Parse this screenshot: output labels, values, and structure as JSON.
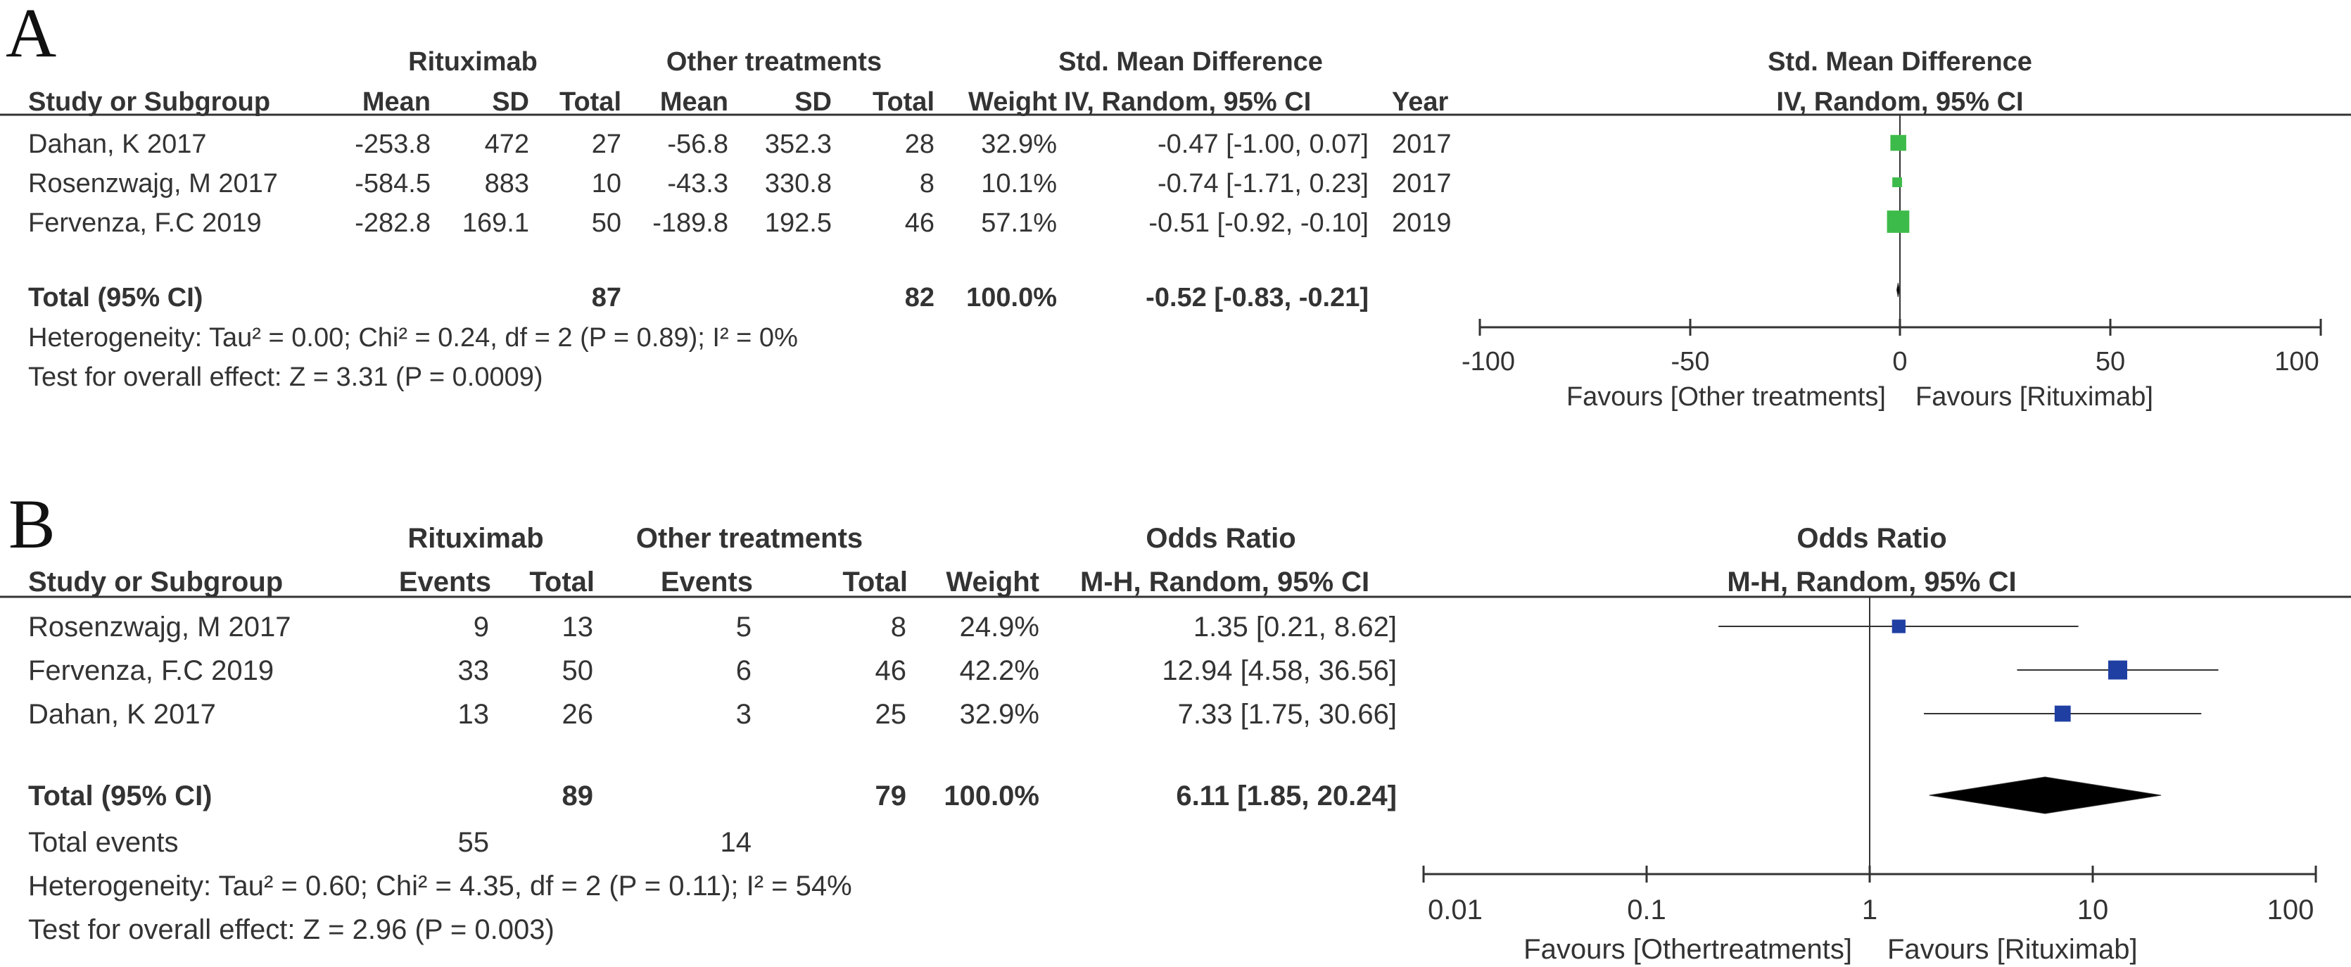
{
  "chart_data": [
    {
      "panel": "A",
      "type": "forest",
      "group_headers": [
        "Rituximab",
        "Other treatments"
      ],
      "columns": [
        "Study or Subgroup",
        "Mean",
        "SD",
        "Total",
        "Mean",
        "SD",
        "Total",
        "Weight",
        "IV, Random, 95% CI",
        "Year"
      ],
      "effect_header": "Std. Mean Difference",
      "plot_header": [
        "Std. Mean Difference",
        "IV, Random, 95% CI"
      ],
      "studies": [
        {
          "study": "Dahan, K 2017",
          "mean1": "-253.8",
          "sd1": "472",
          "n1": "27",
          "mean2": "-56.8",
          "sd2": "352.3",
          "n2": "28",
          "weight": "32.9%",
          "ci_text": "-0.47 [-1.00, 0.07]",
          "year": "2017",
          "est": -0.47,
          "lo": -1.0,
          "hi": 0.07,
          "w": 32.9
        },
        {
          "study": "Rosenzwajg, M 2017",
          "mean1": "-584.5",
          "sd1": "883",
          "n1": "10",
          "mean2": "-43.3",
          "sd2": "330.8",
          "n2": "8",
          "weight": "10.1%",
          "ci_text": "-0.74 [-1.71, 0.23]",
          "year": "2017",
          "est": -0.74,
          "lo": -1.71,
          "hi": 0.23,
          "w": 10.1
        },
        {
          "study": "Fervenza, F.C 2019",
          "mean1": "-282.8",
          "sd1": "169.1",
          "n1": "50",
          "mean2": "-189.8",
          "sd2": "192.5",
          "n2": "46",
          "weight": "57.1%",
          "ci_text": "-0.51 [-0.92, -0.10]",
          "year": "2019",
          "est": -0.51,
          "lo": -0.92,
          "hi": -0.1,
          "w": 57.1
        }
      ],
      "total": {
        "label": "Total (95% CI)",
        "n1": "87",
        "n2": "82",
        "weight": "100.0%",
        "ci_text": "-0.52 [-0.83, -0.21]",
        "est": -0.52,
        "lo": -0.83,
        "hi": -0.21
      },
      "heterogeneity": "Heterogeneity: Tau² = 0.00; Chi² = 0.24, df = 2 (P = 0.89); I² = 0%",
      "overall_effect": "Test for overall effect: Z = 3.31 (P = 0.0009)",
      "axis": {
        "scale": "linear",
        "xlim": [
          -100,
          100
        ],
        "ticks": [
          -100,
          -50,
          0,
          50,
          100
        ],
        "tick_labels": [
          "-100",
          "-50",
          "0",
          "50",
          "100"
        ]
      },
      "favours_left": "Favours [Other treatments]",
      "favours_right": "Favours [Rituximab]",
      "marker_color": "#3dbb4a"
    },
    {
      "panel": "B",
      "type": "forest",
      "group_headers": [
        "Rituximab",
        "Other treatments"
      ],
      "columns": [
        "Study or Subgroup",
        "Events",
        "Total",
        "Events",
        "Total",
        "Weight",
        "M-H, Random, 95% CI"
      ],
      "effect_header": "Odds Ratio",
      "plot_header": [
        "Odds Ratio",
        "M-H, Random, 95% CI"
      ],
      "studies": [
        {
          "study": "Rosenzwajg, M 2017",
          "e1": "9",
          "n1": "13",
          "e2": "5",
          "n2": "8",
          "weight": "24.9%",
          "ci_text": "1.35 [0.21, 8.62]",
          "est": 1.35,
          "lo": 0.21,
          "hi": 8.62,
          "w": 24.9
        },
        {
          "study": "Fervenza, F.C 2019",
          "e1": "33",
          "n1": "50",
          "e2": "6",
          "n2": "46",
          "weight": "42.2%",
          "ci_text": "12.94 [4.58, 36.56]",
          "est": 12.94,
          "lo": 4.58,
          "hi": 36.56,
          "w": 42.2
        },
        {
          "study": "Dahan, K 2017",
          "e1": "13",
          "n1": "26",
          "e2": "3",
          "n2": "25",
          "weight": "32.9%",
          "ci_text": "7.33 [1.75, 30.66]",
          "est": 7.33,
          "lo": 1.75,
          "hi": 30.66,
          "w": 32.9
        }
      ],
      "total": {
        "label": "Total (95% CI)",
        "n1": "89",
        "n2": "79",
        "weight": "100.0%",
        "ci_text": "6.11 [1.85, 20.24]",
        "est": 6.11,
        "lo": 1.85,
        "hi": 20.24
      },
      "total_events": {
        "label": "Total events",
        "e1": "55",
        "e2": "14"
      },
      "heterogeneity": "Heterogeneity: Tau² = 0.60; Chi² = 4.35, df = 2 (P = 0.11); I² = 54%",
      "overall_effect": "Test for overall effect: Z = 2.96 (P = 0.003)",
      "axis": {
        "scale": "log",
        "xlim": [
          0.01,
          100
        ],
        "ticks": [
          0.01,
          0.1,
          1,
          10,
          100
        ],
        "tick_labels": [
          "0.01",
          "0.1",
          "1",
          "10",
          "100"
        ]
      },
      "favours_left": "Favours [Othertreatments]",
      "favours_right": "Favours [Rituximab]",
      "marker_color": "#1f3fa3"
    }
  ]
}
